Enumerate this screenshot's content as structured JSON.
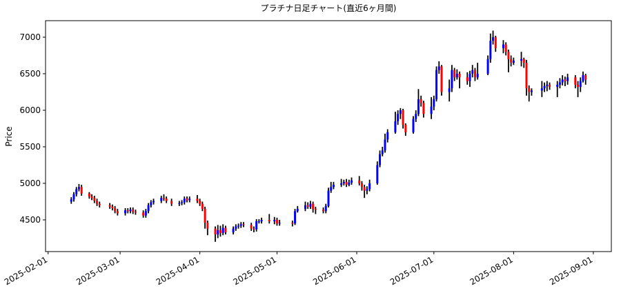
{
  "chart_data": {
    "type": "candlestick",
    "title": "プラチナ日足チャート(直近6ヶ月間)",
    "y_label": "Price",
    "up_color": "#0000ff",
    "down_color": "#ff0000",
    "wick_color": "#000000",
    "xlim": [
      "2025-01-31",
      "2025-09-08"
    ],
    "xticks": [
      "2025-02-01",
      "2025-03-01",
      "2025-04-01",
      "2025-05-01",
      "2025-06-01",
      "2025-07-01",
      "2025-08-01",
      "2025-09-01"
    ],
    "ylim": [
      4066,
      7226
    ],
    "yticks": [
      4500,
      5000,
      5500,
      6000,
      6500,
      7000
    ],
    "x": [
      "2025-02-10",
      "2025-02-11",
      "2025-02-12",
      "2025-02-13",
      "2025-02-14",
      "2025-02-17",
      "2025-02-18",
      "2025-02-19",
      "2025-02-20",
      "2025-02-21",
      "2025-02-25",
      "2025-02-26",
      "2025-02-27",
      "2025-02-28",
      "2025-03-03",
      "2025-03-04",
      "2025-03-05",
      "2025-03-06",
      "2025-03-07",
      "2025-03-10",
      "2025-03-11",
      "2025-03-12",
      "2025-03-13",
      "2025-03-14",
      "2025-03-17",
      "2025-03-18",
      "2025-03-19",
      "2025-03-21",
      "2025-03-24",
      "2025-03-25",
      "2025-03-26",
      "2025-03-27",
      "2025-03-28",
      "2025-03-31",
      "2025-04-01",
      "2025-04-02",
      "2025-04-03",
      "2025-04-04",
      "2025-04-07",
      "2025-04-08",
      "2025-04-09",
      "2025-04-10",
      "2025-04-11",
      "2025-04-14",
      "2025-04-15",
      "2025-04-16",
      "2025-04-17",
      "2025-04-18",
      "2025-04-21",
      "2025-04-22",
      "2025-04-23",
      "2025-04-24",
      "2025-04-25",
      "2025-04-28",
      "2025-04-30",
      "2025-05-01",
      "2025-05-02",
      "2025-05-07",
      "2025-05-08",
      "2025-05-09",
      "2025-05-12",
      "2025-05-13",
      "2025-05-14",
      "2025-05-15",
      "2025-05-16",
      "2025-05-19",
      "2025-05-20",
      "2025-05-21",
      "2025-05-22",
      "2025-05-23",
      "2025-05-26",
      "2025-05-27",
      "2025-05-28",
      "2025-05-29",
      "2025-05-30",
      "2025-06-02",
      "2025-06-03",
      "2025-06-04",
      "2025-06-05",
      "2025-06-06",
      "2025-06-09",
      "2025-06-10",
      "2025-06-11",
      "2025-06-12",
      "2025-06-13",
      "2025-06-16",
      "2025-06-17",
      "2025-06-18",
      "2025-06-19",
      "2025-06-20",
      "2025-06-23",
      "2025-06-24",
      "2025-06-25",
      "2025-06-26",
      "2025-06-27",
      "2025-06-30",
      "2025-07-01",
      "2025-07-02",
      "2025-07-03",
      "2025-07-04",
      "2025-07-07",
      "2025-07-08",
      "2025-07-09",
      "2025-07-10",
      "2025-07-11",
      "2025-07-14",
      "2025-07-15",
      "2025-07-16",
      "2025-07-17",
      "2025-07-18",
      "2025-07-22",
      "2025-07-23",
      "2025-07-24",
      "2025-07-25",
      "2025-07-28",
      "2025-07-29",
      "2025-07-30",
      "2025-07-31",
      "2025-08-01",
      "2025-08-04",
      "2025-08-05",
      "2025-08-06",
      "2025-08-07",
      "2025-08-08",
      "2025-08-12",
      "2025-08-13",
      "2025-08-14",
      "2025-08-15",
      "2025-08-18",
      "2025-08-19",
      "2025-08-20",
      "2025-08-21",
      "2025-08-22",
      "2025-08-25",
      "2025-08-26",
      "2025-08-27",
      "2025-08-28",
      "2025-08-29"
    ],
    "open": [
      4750,
      4780,
      4850,
      4920,
      4950,
      4860,
      4820,
      4800,
      4760,
      4720,
      4700,
      4680,
      4660,
      4620,
      4590,
      4630,
      4620,
      4640,
      4610,
      4600,
      4560,
      4620,
      4700,
      4740,
      4760,
      4800,
      4790,
      4760,
      4720,
      4730,
      4740,
      4790,
      4770,
      4790,
      4760,
      4720,
      4650,
      4460,
      4380,
      4300,
      4360,
      4320,
      4390,
      4330,
      4380,
      4410,
      4420,
      4440,
      4430,
      4380,
      4370,
      4480,
      4480,
      4500,
      4480,
      4500,
      4450,
      4460,
      4450,
      4620,
      4650,
      4700,
      4680,
      4720,
      4650,
      4640,
      4620,
      4690,
      4900,
      4950,
      4980,
      5000,
      5020,
      4980,
      5010,
      5040,
      5000,
      4950,
      4900,
      4920,
      5000,
      5250,
      5400,
      5450,
      5600,
      5700,
      5850,
      5950,
      6000,
      5800,
      5700,
      5880,
      5950,
      6150,
      6100,
      5950,
      6050,
      6150,
      6550,
      6600,
      6250,
      6300,
      6550,
      6450,
      6500,
      6450,
      6400,
      6500,
      6550,
      6450,
      6500,
      6700,
      6950,
      7000,
      6850,
      6900,
      6800,
      6700,
      6650,
      6680,
      6700,
      6650,
      6300,
      6250,
      6270,
      6300,
      6330,
      6350,
      6320,
      6350,
      6380,
      6420,
      6400,
      6450,
      6350,
      6320,
      6400,
      6480
    ],
    "high": [
      4810,
      4880,
      4950,
      4990,
      4980,
      4880,
      4850,
      4830,
      4790,
      4750,
      4730,
      4710,
      4690,
      4650,
      4660,
      4660,
      4670,
      4670,
      4640,
      4630,
      4650,
      4730,
      4770,
      4790,
      4830,
      4850,
      4820,
      4790,
      4760,
      4770,
      4820,
      4820,
      4820,
      4840,
      4790,
      4750,
      4680,
      4490,
      4410,
      4430,
      4420,
      4440,
      4420,
      4410,
      4440,
      4450,
      4470,
      4470,
      4460,
      4410,
      4510,
      4510,
      4530,
      4580,
      4540,
      4530,
      4500,
      4490,
      4650,
      4690,
      4750,
      4740,
      4760,
      4750,
      4680,
      4670,
      4720,
      4940,
      5020,
      5020,
      5060,
      5050,
      5060,
      5050,
      5080,
      5100,
      5030,
      4980,
      4960,
      5050,
      5300,
      5450,
      5500,
      5680,
      5740,
      5980,
      6000,
      6030,
      6020,
      5820,
      5920,
      6000,
      6290,
      6200,
      6130,
      6180,
      6200,
      6600,
      6670,
      6620,
      6420,
      6620,
      6580,
      6560,
      6530,
      6520,
      6540,
      6620,
      6580,
      6650,
      6750,
      7050,
      7090,
      7020,
      6960,
      6930,
      6830,
      6750,
      6720,
      6800,
      6720,
      6690,
      6340,
      6300,
      6400,
      6380,
      6400,
      6380,
      6400,
      6440,
      6480,
      6460,
      6500,
      6480,
      6400,
      6450,
      6530,
      6500
    ],
    "low": [
      4720,
      4750,
      4820,
      4890,
      4830,
      4790,
      4770,
      4730,
      4690,
      4670,
      4650,
      4630,
      4590,
      4560,
      4560,
      4590,
      4590,
      4580,
      4570,
      4530,
      4530,
      4590,
      4670,
      4710,
      4730,
      4760,
      4730,
      4690,
      4690,
      4700,
      4710,
      4740,
      4740,
      4730,
      4690,
      4620,
      4380,
      4290,
      4200,
      4250,
      4270,
      4290,
      4300,
      4300,
      4350,
      4380,
      4390,
      4400,
      4350,
      4330,
      4340,
      4450,
      4450,
      4450,
      4440,
      4420,
      4420,
      4410,
      4430,
      4600,
      4620,
      4650,
      4650,
      4600,
      4580,
      4590,
      4590,
      4670,
      4870,
      4920,
      4950,
      4970,
      4950,
      4960,
      4980,
      4970,
      4900,
      4800,
      4850,
      4890,
      4980,
      5220,
      5370,
      5420,
      5560,
      5680,
      5800,
      5880,
      5750,
      5650,
      5680,
      5840,
      5920,
      6050,
      5900,
      5880,
      6000,
      6120,
      6500,
      6200,
      6120,
      6250,
      6400,
      6420,
      6300,
      6350,
      6320,
      6450,
      6400,
      6420,
      6480,
      6650,
      6900,
      6800,
      6780,
      6750,
      6520,
      6600,
      6620,
      6600,
      6580,
      6200,
      6120,
      6200,
      6180,
      6250,
      6260,
      6280,
      6180,
      6300,
      6340,
      6330,
      6350,
      6300,
      6180,
      6250,
      6380,
      6350
    ],
    "close": [
      4780,
      4850,
      4920,
      4950,
      4860,
      4820,
      4800,
      4760,
      4720,
      4700,
      4680,
      4660,
      4620,
      4590,
      4630,
      4620,
      4640,
      4610,
      4600,
      4560,
      4620,
      4700,
      4740,
      4760,
      4800,
      4790,
      4760,
      4720,
      4730,
      4740,
      4790,
      4770,
      4790,
      4760,
      4720,
      4650,
      4460,
      4380,
      4300,
      4360,
      4320,
      4390,
      4330,
      4380,
      4410,
      4420,
      4440,
      4430,
      4380,
      4370,
      4480,
      4480,
      4500,
      4480,
      4500,
      4450,
      4460,
      4450,
      4620,
      4650,
      4700,
      4680,
      4720,
      4650,
      4640,
      4620,
      4690,
      4900,
      4950,
      4980,
      5000,
      5020,
      4980,
      5010,
      5040,
      5000,
      4950,
      4900,
      4920,
      5000,
      5250,
      5400,
      5450,
      5600,
      5700,
      5850,
      5950,
      6000,
      5800,
      5700,
      5880,
      5950,
      6150,
      6100,
      5950,
      6050,
      6150,
      6550,
      6600,
      6250,
      6300,
      6550,
      6450,
      6500,
      6450,
      6400,
      6500,
      6550,
      6450,
      6500,
      6700,
      6950,
      7000,
      6850,
      6900,
      6800,
      6700,
      6650,
      6680,
      6700,
      6650,
      6300,
      6250,
      6270,
      6300,
      6330,
      6350,
      6320,
      6350,
      6380,
      6420,
      6400,
      6450,
      6350,
      6320,
      6400,
      6480,
      6420
    ]
  }
}
